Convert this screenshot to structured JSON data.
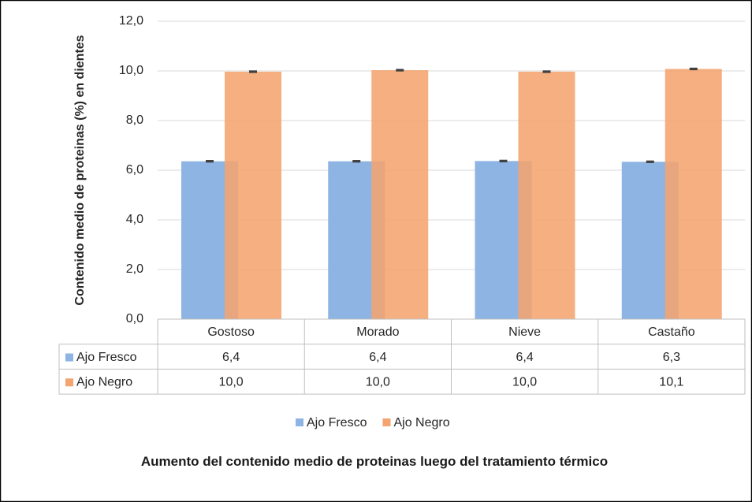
{
  "chart_data": {
    "type": "bar",
    "title": "Aumento del contenido medio de proteinas luego del tratamiento térmico",
    "y_label": "Contenido medio de proteinas (%) en dientes",
    "categories": [
      "Gostoso",
      "Morado",
      "Nieve",
      "Castaño"
    ],
    "series": [
      {
        "name": "Ajo Fresco",
        "color": "#8db4e2",
        "values": [
          6.36,
          6.36,
          6.37,
          6.34
        ],
        "value_labels": [
          "6,4",
          "6,4",
          "6,4",
          "6,3"
        ],
        "errors": [
          0.02,
          0.02,
          0.02,
          0.02
        ]
      },
      {
        "name": "Ajo Negro",
        "color": "#f4a46e",
        "values": [
          9.97,
          10.03,
          9.97,
          10.08
        ],
        "value_labels": [
          "10,0",
          "10,0",
          "10,0",
          "10,1"
        ],
        "errors": [
          0.02,
          0.02,
          0.02,
          0.02
        ]
      }
    ],
    "ylim": [
      0,
      12
    ],
    "yticks": [
      {
        "value": 0,
        "label": "0,0"
      },
      {
        "value": 2,
        "label": "2,0"
      },
      {
        "value": 4,
        "label": "4,0"
      },
      {
        "value": 6,
        "label": "6,0"
      },
      {
        "value": 8,
        "label": "8,0"
      },
      {
        "value": 10,
        "label": "10,0"
      },
      {
        "value": 12,
        "label": "12,0"
      }
    ],
    "grid": true
  }
}
